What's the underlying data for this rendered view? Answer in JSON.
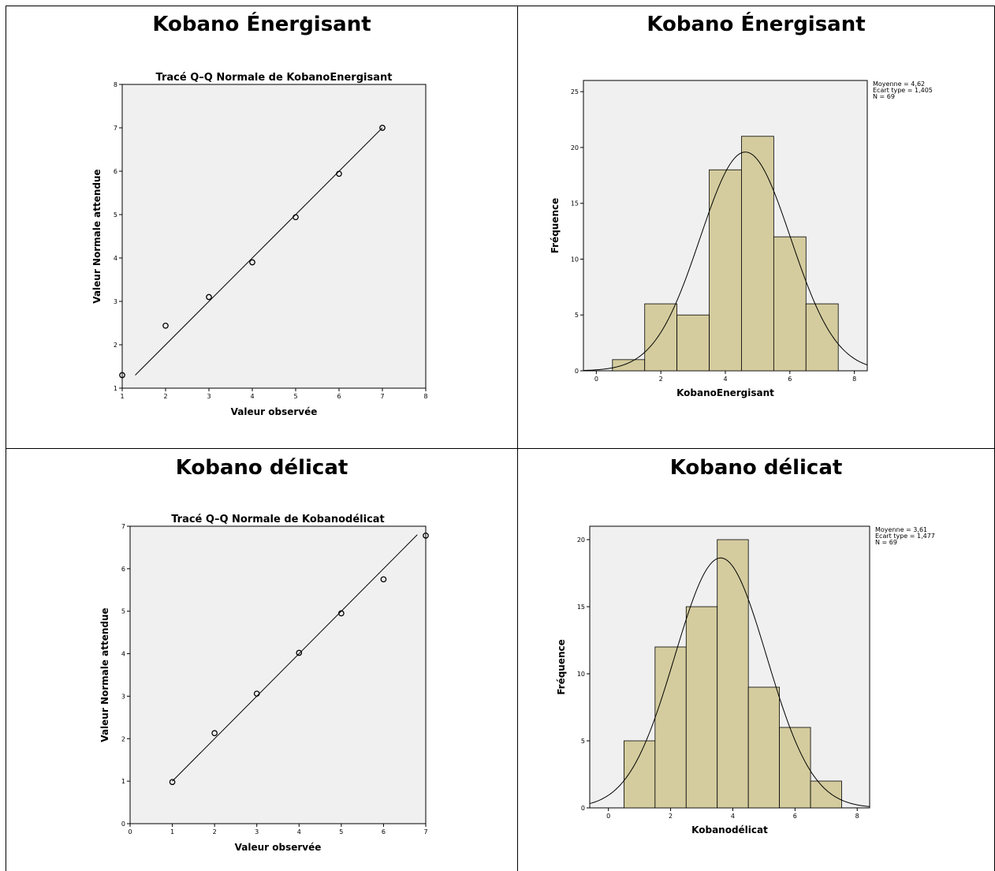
{
  "cells": [
    {
      "title": "Kobano Énergisant"
    },
    {
      "title": "Kobano Énergisant"
    },
    {
      "title": "Kobano délicat"
    },
    {
      "title": "Kobano délicat"
    }
  ],
  "chart_data": [
    {
      "type": "scatter",
      "title": "Tracé Q–Q Normale de KobanoEnergisant",
      "xlabel": "Valeur observée",
      "ylabel": "Valeur Normale attendue",
      "xlim": [
        1,
        8
      ],
      "ylim": [
        1,
        8
      ],
      "xticks": [
        "1",
        "2",
        "3",
        "4",
        "5",
        "6",
        "7",
        "8"
      ],
      "yticks": [
        "1",
        "2",
        "3",
        "4",
        "5",
        "6",
        "7",
        "8"
      ],
      "points": [
        [
          1,
          1.3
        ],
        [
          2,
          2.44
        ],
        [
          3,
          3.1
        ],
        [
          4,
          3.9
        ],
        [
          5,
          4.94
        ],
        [
          6,
          5.94
        ],
        [
          7,
          7.0
        ]
      ],
      "reference_line": [
        [
          1.3,
          1.3
        ],
        [
          7.0,
          7.0
        ]
      ]
    },
    {
      "type": "bar",
      "title": "",
      "xlabel": "KobanoEnergisant",
      "ylabel": "Fréquence",
      "xlim": [
        -0.4,
        8.4
      ],
      "ylim": [
        0,
        26
      ],
      "xticks": [
        "0",
        "2",
        "4",
        "6",
        "8"
      ],
      "yticks": [
        "0",
        "5",
        "10",
        "15",
        "20",
        "25"
      ],
      "bins": [
        [
          0.5,
          1.5
        ],
        [
          1.5,
          2.5
        ],
        [
          2.5,
          3.5
        ],
        [
          3.5,
          4.5
        ],
        [
          4.5,
          5.5
        ],
        [
          5.5,
          6.5
        ],
        [
          6.5,
          7.5
        ]
      ],
      "values": [
        1,
        6,
        5,
        18,
        21,
        12,
        6
      ],
      "normal_curve": {
        "mean": 4.62,
        "sd": 1.405,
        "n": 69,
        "bin_width": 1
      },
      "stats": [
        "Moyenne = 4,62",
        "Ecart type = 1,405",
        "N = 69"
      ],
      "colors": {
        "bar": "#d4cc9e",
        "plot_bg": "#f0f0f0"
      }
    },
    {
      "type": "scatter",
      "title": "Tracé Q–Q Normale de Kobanodélicat",
      "xlabel": "Valeur observée",
      "ylabel": "Valeur Normale attendue",
      "xlim": [
        0,
        7
      ],
      "ylim": [
        0,
        7
      ],
      "xticks": [
        "0",
        "1",
        "2",
        "3",
        "4",
        "5",
        "6",
        "7"
      ],
      "yticks": [
        "0",
        "1",
        "2",
        "3",
        "4",
        "5",
        "6",
        "7"
      ],
      "points": [
        [
          1,
          0.98
        ],
        [
          2,
          2.13
        ],
        [
          3,
          3.06
        ],
        [
          4,
          4.02
        ],
        [
          5,
          4.95
        ],
        [
          6,
          5.75
        ],
        [
          7,
          6.78
        ]
      ],
      "reference_line": [
        [
          1.0,
          1.0
        ],
        [
          6.8,
          6.8
        ]
      ]
    },
    {
      "type": "bar",
      "title": "",
      "xlabel": "Kobanodélicat",
      "ylabel": "Fréquence",
      "xlim": [
        -0.6,
        8.4
      ],
      "ylim": [
        0,
        21
      ],
      "xticks": [
        "0",
        "2",
        "4",
        "6",
        "8"
      ],
      "yticks": [
        "0",
        "5",
        "10",
        "15",
        "20"
      ],
      "bins": [
        [
          0.5,
          1.5
        ],
        [
          1.5,
          2.5
        ],
        [
          2.5,
          3.5
        ],
        [
          3.5,
          4.5
        ],
        [
          4.5,
          5.5
        ],
        [
          5.5,
          6.5
        ],
        [
          6.5,
          7.5
        ]
      ],
      "values": [
        5,
        12,
        15,
        20,
        9,
        6,
        2
      ],
      "normal_curve": {
        "mean": 3.61,
        "sd": 1.477,
        "n": 69,
        "bin_width": 1
      },
      "stats": [
        "Moyenne = 3,61",
        "Ecart type = 1,477",
        "N = 69"
      ],
      "colors": {
        "bar": "#d4cc9e",
        "plot_bg": "#f0f0f0"
      }
    }
  ]
}
